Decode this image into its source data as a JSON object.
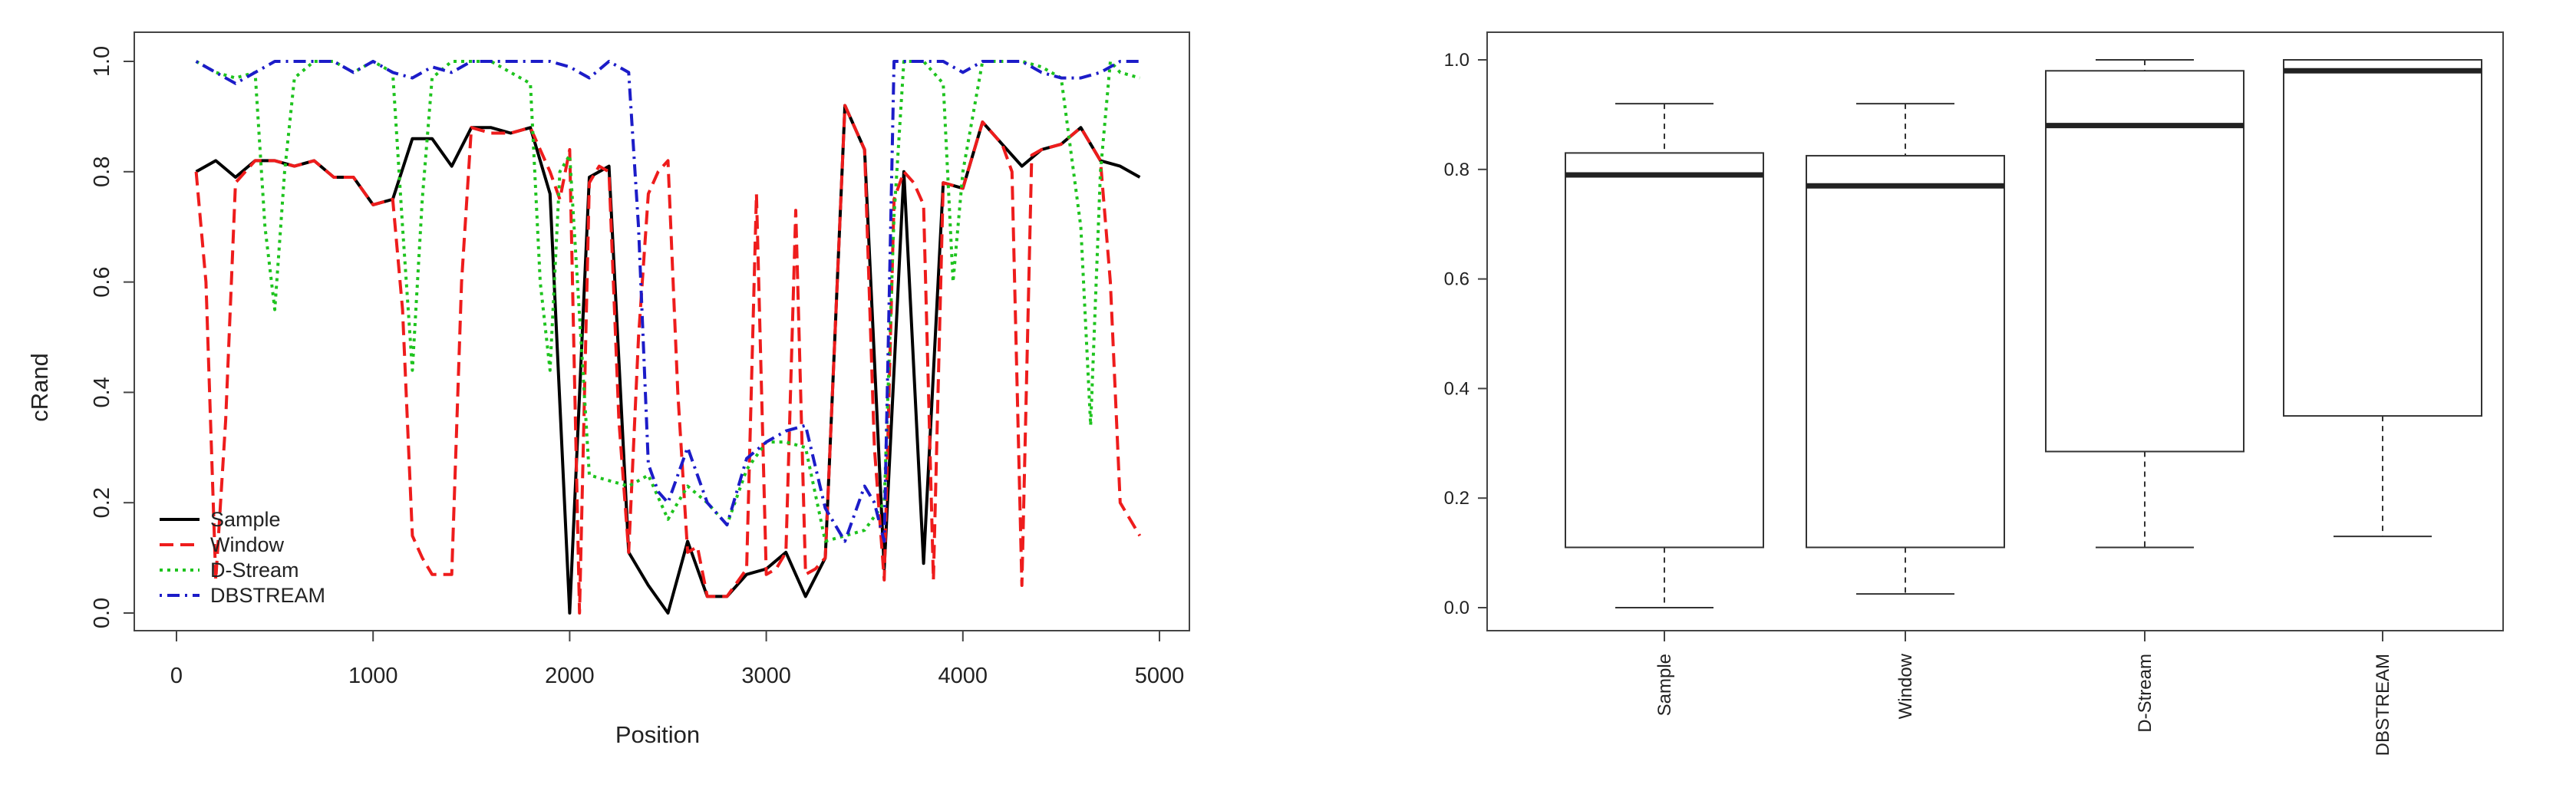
{
  "chart_data": [
    {
      "type": "line",
      "xlabel": "Position",
      "ylabel": "cRand",
      "xlim": [
        0,
        5000
      ],
      "ylim": [
        0,
        1
      ],
      "x_ticks": [
        "0",
        "1000",
        "2000",
        "3000",
        "4000",
        "5000"
      ],
      "y_ticks": [
        "0.0",
        "0.2",
        "0.4",
        "0.6",
        "0.8",
        "1.0"
      ],
      "legend_position": "bottom-left",
      "grid": false,
      "series": [
        {
          "name": "Sample",
          "color": "#000000",
          "style": "solid",
          "x": [
            100,
            200,
            300,
            400,
            500,
            600,
            700,
            800,
            900,
            1000,
            1100,
            1200,
            1300,
            1400,
            1500,
            1600,
            1700,
            1800,
            1900,
            2000,
            2100,
            2200,
            2300,
            2400,
            2500,
            2600,
            2700,
            2800,
            2900,
            3000,
            3100,
            3200,
            3300,
            3400,
            3500,
            3600,
            3700,
            3800,
            3900,
            4000,
            4100,
            4200,
            4300,
            4400,
            4500,
            4600,
            4700,
            4800,
            4900
          ],
          "y": [
            0.8,
            0.82,
            0.79,
            0.82,
            0.82,
            0.81,
            0.82,
            0.79,
            0.79,
            0.74,
            0.75,
            0.86,
            0.86,
            0.81,
            0.88,
            0.88,
            0.87,
            0.88,
            0.76,
            0.0,
            0.79,
            0.81,
            0.11,
            0.05,
            0.0,
            0.13,
            0.03,
            0.03,
            0.07,
            0.08,
            0.11,
            0.03,
            0.1,
            0.92,
            0.84,
            0.08,
            0.8,
            0.09,
            0.78,
            0.77,
            0.89,
            0.85,
            0.81,
            0.84,
            0.85,
            0.88,
            0.82,
            0.81,
            0.79
          ]
        },
        {
          "name": "Window",
          "color": "#ee1c1c",
          "style": "dashed",
          "x": [
            100,
            150,
            200,
            250,
            300,
            400,
            500,
            600,
            700,
            800,
            900,
            1000,
            1100,
            1150,
            1200,
            1250,
            1300,
            1350,
            1400,
            1450,
            1500,
            1600,
            1700,
            1800,
            1900,
            1950,
            2000,
            2050,
            2100,
            2150,
            2200,
            2250,
            2300,
            2350,
            2400,
            2450,
            2500,
            2550,
            2600,
            2650,
            2700,
            2800,
            2900,
            2950,
            3000,
            3050,
            3100,
            3150,
            3200,
            3250,
            3300,
            3400,
            3500,
            3550,
            3600,
            3650,
            3700,
            3750,
            3800,
            3850,
            3900,
            4000,
            4100,
            4200,
            4250,
            4300,
            4350,
            4400,
            4500,
            4600,
            4700,
            4750,
            4800,
            4900
          ],
          "y": [
            0.8,
            0.6,
            0.06,
            0.35,
            0.78,
            0.82,
            0.82,
            0.81,
            0.82,
            0.79,
            0.79,
            0.74,
            0.75,
            0.55,
            0.14,
            0.1,
            0.07,
            0.07,
            0.07,
            0.6,
            0.88,
            0.87,
            0.87,
            0.88,
            0.8,
            0.75,
            0.84,
            0.0,
            0.78,
            0.81,
            0.8,
            0.35,
            0.11,
            0.5,
            0.76,
            0.8,
            0.82,
            0.4,
            0.11,
            0.12,
            0.03,
            0.03,
            0.08,
            0.76,
            0.07,
            0.08,
            0.11,
            0.73,
            0.07,
            0.08,
            0.1,
            0.92,
            0.84,
            0.3,
            0.06,
            0.75,
            0.8,
            0.78,
            0.74,
            0.06,
            0.78,
            0.77,
            0.89,
            0.85,
            0.8,
            0.05,
            0.83,
            0.84,
            0.85,
            0.88,
            0.82,
            0.6,
            0.2,
            0.14
          ]
        },
        {
          "name": "D-Stream",
          "color": "#1ec31e",
          "style": "dotted",
          "x": [
            100,
            200,
            300,
            400,
            450,
            500,
            550,
            600,
            700,
            800,
            900,
            1000,
            1100,
            1150,
            1200,
            1250,
            1300,
            1400,
            1500,
            1600,
            1700,
            1800,
            1850,
            1900,
            1950,
            2000,
            2100,
            2200,
            2300,
            2400,
            2500,
            2600,
            2700,
            2800,
            2900,
            3000,
            3100,
            3200,
            3300,
            3400,
            3500,
            3600,
            3650,
            3700,
            3800,
            3900,
            3950,
            4000,
            4100,
            4200,
            4300,
            4400,
            4500,
            4600,
            4650,
            4700,
            4750,
            4800,
            4900
          ],
          "y": [
            1.0,
            0.98,
            0.97,
            0.98,
            0.7,
            0.55,
            0.8,
            0.97,
            1.0,
            1.0,
            0.98,
            1.0,
            0.98,
            0.7,
            0.44,
            0.75,
            0.97,
            1.0,
            1.0,
            1.0,
            0.98,
            0.96,
            0.6,
            0.44,
            0.8,
            0.83,
            0.25,
            0.24,
            0.23,
            0.25,
            0.17,
            0.23,
            0.2,
            0.16,
            0.26,
            0.31,
            0.31,
            0.3,
            0.13,
            0.14,
            0.15,
            0.2,
            0.72,
            1.0,
            1.0,
            0.96,
            0.6,
            0.8,
            1.0,
            1.0,
            1.0,
            0.99,
            0.97,
            0.7,
            0.34,
            0.8,
            1.0,
            0.98,
            0.97
          ]
        },
        {
          "name": "DBSTREAM",
          "color": "#1c1cc8",
          "style": "dotdash",
          "x": [
            100,
            200,
            300,
            400,
            500,
            600,
            700,
            800,
            900,
            1000,
            1100,
            1200,
            1300,
            1400,
            1500,
            1600,
            1700,
            1800,
            1900,
            2000,
            2100,
            2200,
            2300,
            2350,
            2400,
            2450,
            2500,
            2600,
            2700,
            2800,
            2900,
            3000,
            3100,
            3200,
            3300,
            3400,
            3500,
            3550,
            3600,
            3650,
            3700,
            3800,
            3900,
            4000,
            4100,
            4200,
            4300,
            4400,
            4500,
            4600,
            4700,
            4800,
            4900
          ],
          "y": [
            1.0,
            0.98,
            0.96,
            0.98,
            1.0,
            1.0,
            1.0,
            1.0,
            0.98,
            1.0,
            0.98,
            0.97,
            0.99,
            0.98,
            1.0,
            1.0,
            1.0,
            1.0,
            1.0,
            0.99,
            0.97,
            1.0,
            0.98,
            0.7,
            0.27,
            0.22,
            0.2,
            0.3,
            0.2,
            0.16,
            0.28,
            0.31,
            0.33,
            0.34,
            0.19,
            0.13,
            0.23,
            0.2,
            0.13,
            1.0,
            1.0,
            1.0,
            1.0,
            0.98,
            1.0,
            1.0,
            1.0,
            0.98,
            0.97,
            0.97,
            0.98,
            1.0,
            1.0
          ]
        }
      ]
    },
    {
      "type": "box",
      "categories": [
        "Sample",
        "Window",
        "D-Stream",
        "DBSTREAM"
      ],
      "ylim": [
        0,
        1
      ],
      "y_ticks": [
        "0.0",
        "0.2",
        "0.4",
        "0.6",
        "0.8",
        "1.0"
      ],
      "boxes": [
        {
          "name": "Sample",
          "min": 0.0,
          "q1": 0.11,
          "median": 0.79,
          "q3": 0.83,
          "max": 0.92
        },
        {
          "name": "Window",
          "min": 0.025,
          "q1": 0.11,
          "median": 0.77,
          "q3": 0.825,
          "max": 0.92
        },
        {
          "name": "D-Stream",
          "min": 0.11,
          "q1": 0.285,
          "median": 0.88,
          "q3": 0.98,
          "max": 1.0
        },
        {
          "name": "DBSTREAM",
          "min": 0.13,
          "q1": 0.35,
          "median": 0.98,
          "q3": 1.0,
          "max": 1.0
        }
      ]
    }
  ]
}
